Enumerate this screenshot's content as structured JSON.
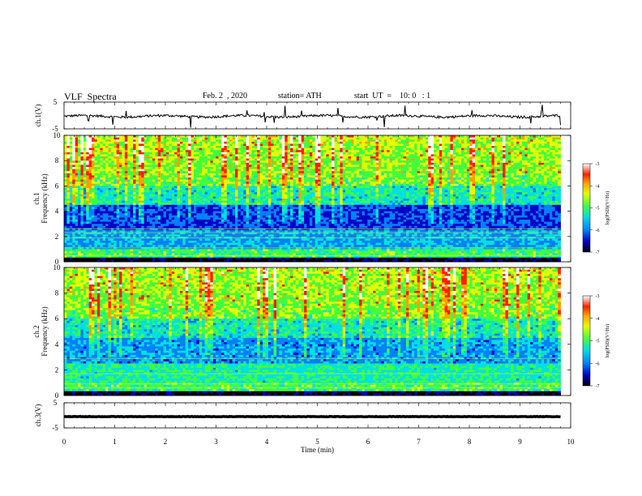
{
  "header": {
    "title": "VLF  Spectra",
    "date": "Feb. 2  , 2020",
    "station": "station= ATH",
    "start": "start  UT  =    10: 0   : 1"
  },
  "chart_data": [
    {
      "type": "line",
      "panel": "ch1-waveform",
      "ylabel": "ch.1(V)",
      "ylim": [
        -5,
        5
      ],
      "yticks": [
        "5",
        "-5"
      ],
      "x_range_min": [
        0,
        9.8
      ],
      "baseline_v": -0.3,
      "color": "#000000"
    },
    {
      "type": "heatmap",
      "panel": "ch1-spectrogram",
      "ylabel": "ch.1\nFrequency  (kHz)",
      "ylim": [
        0,
        10
      ],
      "yticks": [
        "0",
        "2",
        "4",
        "6",
        "8",
        "10"
      ],
      "x_range_min": [
        0,
        9.8
      ],
      "colorbar": {
        "label": "log(PSD)(V²/Hz)",
        "range": [
          -7,
          -3
        ],
        "ticks": [
          "-3",
          "-4",
          "-5",
          "-6",
          "-7"
        ]
      }
    },
    {
      "type": "heatmap",
      "panel": "ch2-spectrogram",
      "ylabel": "ch.2\nFrequency  (kHz)",
      "ylim": [
        0,
        10
      ],
      "yticks": [
        "0",
        "2",
        "4",
        "6",
        "8",
        "10"
      ],
      "x_range_min": [
        0,
        9.8
      ],
      "colorbar": {
        "label": "log(PSD)(V²/Hz)",
        "range": [
          -7,
          -3
        ],
        "ticks": [
          "-3",
          "-4",
          "-5",
          "-6",
          "-7"
        ]
      }
    },
    {
      "type": "line",
      "panel": "ch3-waveform",
      "ylabel": "ch.3(V)",
      "ylim": [
        -5,
        5
      ],
      "yticks": [
        "5",
        "-5"
      ],
      "x_range_min": [
        0,
        9.8
      ],
      "baseline_v": -0.5,
      "color": "#000000"
    }
  ],
  "xaxis": {
    "label": "Time  (min)",
    "range": [
      0,
      10
    ],
    "ticks": [
      "0",
      "1",
      "2",
      "3",
      "4",
      "5",
      "6",
      "7",
      "8",
      "9",
      "10"
    ]
  },
  "colors": {
    "colormap": [
      "#000000",
      "#0000c8",
      "#0080ff",
      "#00e0e0",
      "#40ff40",
      "#e0ff00",
      "#ffa000",
      "#ff2000",
      "#ffffff"
    ]
  }
}
